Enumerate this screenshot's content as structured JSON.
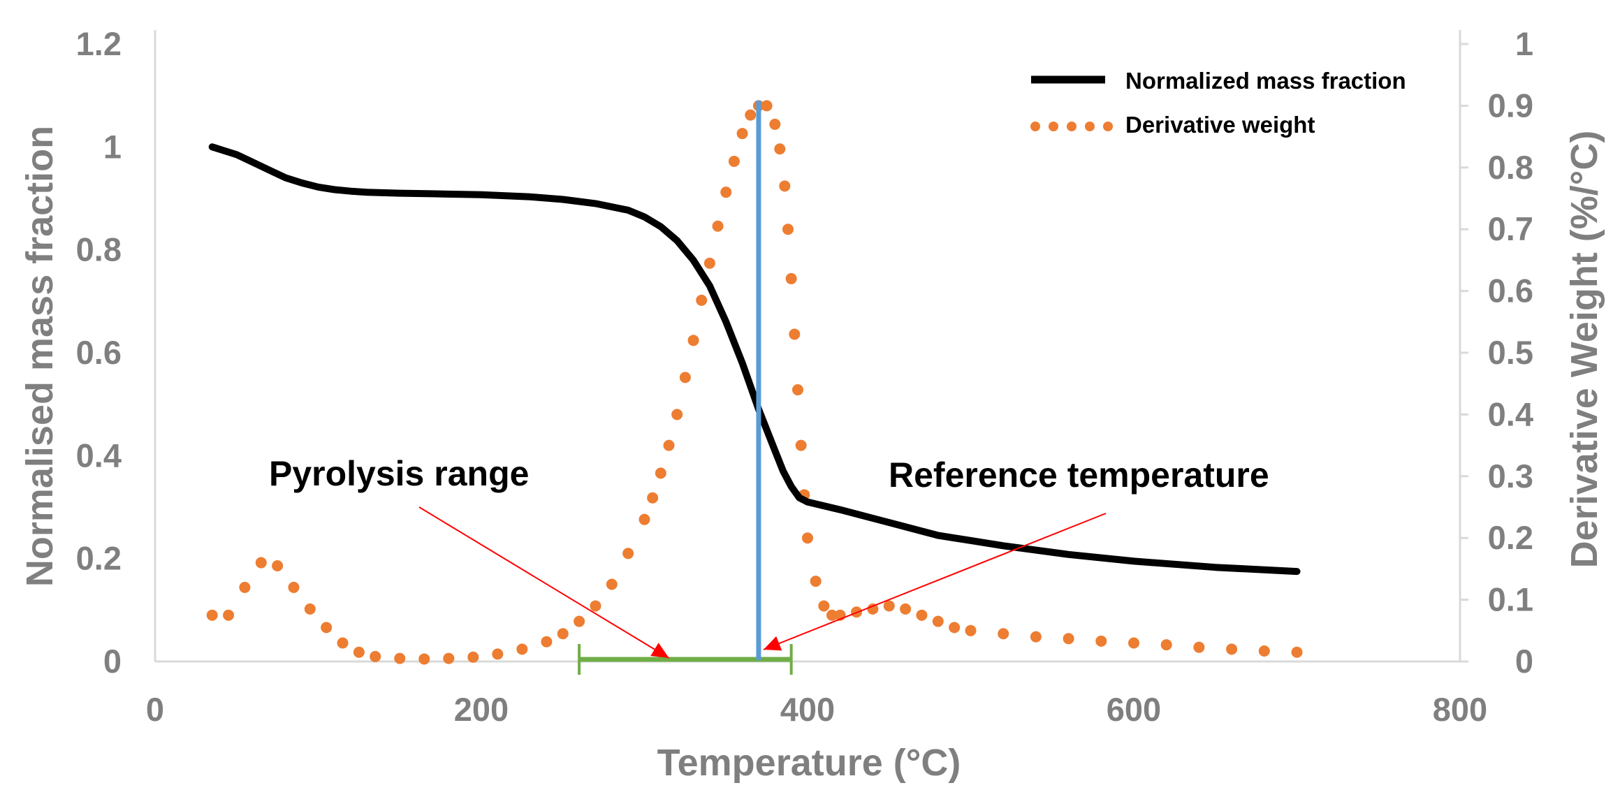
{
  "chart_data": {
    "type": "line",
    "title": "",
    "xlabel": "Temperature (°C)",
    "ylabel": "Normalised mass fraction",
    "y2label": "Derivative Weight (%/°C)",
    "xlim": [
      0,
      800
    ],
    "ylim": [
      0,
      1.2
    ],
    "y2lim": [
      0,
      1
    ],
    "x_ticks": [
      "0",
      "200",
      "400",
      "600",
      "800"
    ],
    "y_ticks": [
      "0",
      "0.2",
      "0.4",
      "0.6",
      "0.8",
      "1",
      "1.2"
    ],
    "y2_ticks": [
      "0",
      "0.1",
      "0.2",
      "0.3",
      "0.4",
      "0.5",
      "0.6",
      "0.7",
      "0.8",
      "0.9",
      "1"
    ],
    "grid": false,
    "legend_position": "top-right",
    "series": [
      {
        "name": "Normalized mass fraction",
        "axis": "left",
        "style": "solid",
        "color": "#000000",
        "x": [
          35,
          40,
          50,
          60,
          70,
          80,
          90,
          100,
          110,
          120,
          130,
          150,
          170,
          200,
          230,
          250,
          270,
          290,
          300,
          310,
          320,
          330,
          340,
          350,
          360,
          370,
          380,
          385,
          390,
          395,
          400,
          420,
          450,
          480,
          520,
          560,
          600,
          650,
          700
        ],
        "values": [
          1.0,
          0.995,
          0.985,
          0.97,
          0.955,
          0.94,
          0.93,
          0.922,
          0.917,
          0.914,
          0.912,
          0.91,
          0.909,
          0.907,
          0.903,
          0.898,
          0.89,
          0.877,
          0.864,
          0.845,
          0.818,
          0.78,
          0.73,
          0.66,
          0.58,
          0.49,
          0.41,
          0.37,
          0.34,
          0.318,
          0.31,
          0.295,
          0.27,
          0.245,
          0.225,
          0.208,
          0.195,
          0.183,
          0.175
        ]
      },
      {
        "name": "Derivative weight",
        "axis": "right",
        "style": "dotted",
        "color": "#ED7D31",
        "x": [
          35,
          45,
          55,
          65,
          75,
          85,
          95,
          105,
          115,
          125,
          135,
          150,
          165,
          180,
          195,
          210,
          225,
          240,
          250,
          260,
          270,
          280,
          290,
          300,
          305,
          310,
          315,
          320,
          325,
          330,
          335,
          340,
          345,
          350,
          355,
          360,
          365,
          370,
          375,
          380,
          383,
          386,
          388,
          390,
          392,
          394,
          396,
          398,
          400,
          405,
          410,
          415,
          420,
          430,
          440,
          450,
          460,
          470,
          480,
          490,
          500,
          520,
          540,
          560,
          580,
          600,
          620,
          640,
          660,
          680,
          700
        ],
        "values": [
          0.075,
          0.075,
          0.12,
          0.16,
          0.155,
          0.12,
          0.085,
          0.055,
          0.03,
          0.015,
          0.008,
          0.005,
          0.004,
          0.005,
          0.007,
          0.012,
          0.02,
          0.032,
          0.045,
          0.065,
          0.09,
          0.125,
          0.175,
          0.23,
          0.265,
          0.305,
          0.35,
          0.4,
          0.46,
          0.52,
          0.585,
          0.645,
          0.705,
          0.76,
          0.81,
          0.855,
          0.885,
          0.9,
          0.9,
          0.87,
          0.83,
          0.77,
          0.7,
          0.62,
          0.53,
          0.44,
          0.35,
          0.27,
          0.2,
          0.13,
          0.09,
          0.075,
          0.075,
          0.08,
          0.085,
          0.09,
          0.085,
          0.075,
          0.065,
          0.055,
          0.05,
          0.045,
          0.04,
          0.037,
          0.033,
          0.03,
          0.027,
          0.023,
          0.02,
          0.017,
          0.015
        ]
      }
    ],
    "annotations": [
      {
        "text": "Pyrolysis range",
        "type": "range",
        "x_start": 260,
        "x_end": 390,
        "color": "#70AD47"
      },
      {
        "text": "Reference temperature",
        "type": "vline",
        "x": 370,
        "y_top": 1.09,
        "color": "#5B9BD5"
      }
    ],
    "arrow_color": "#FF0000"
  }
}
